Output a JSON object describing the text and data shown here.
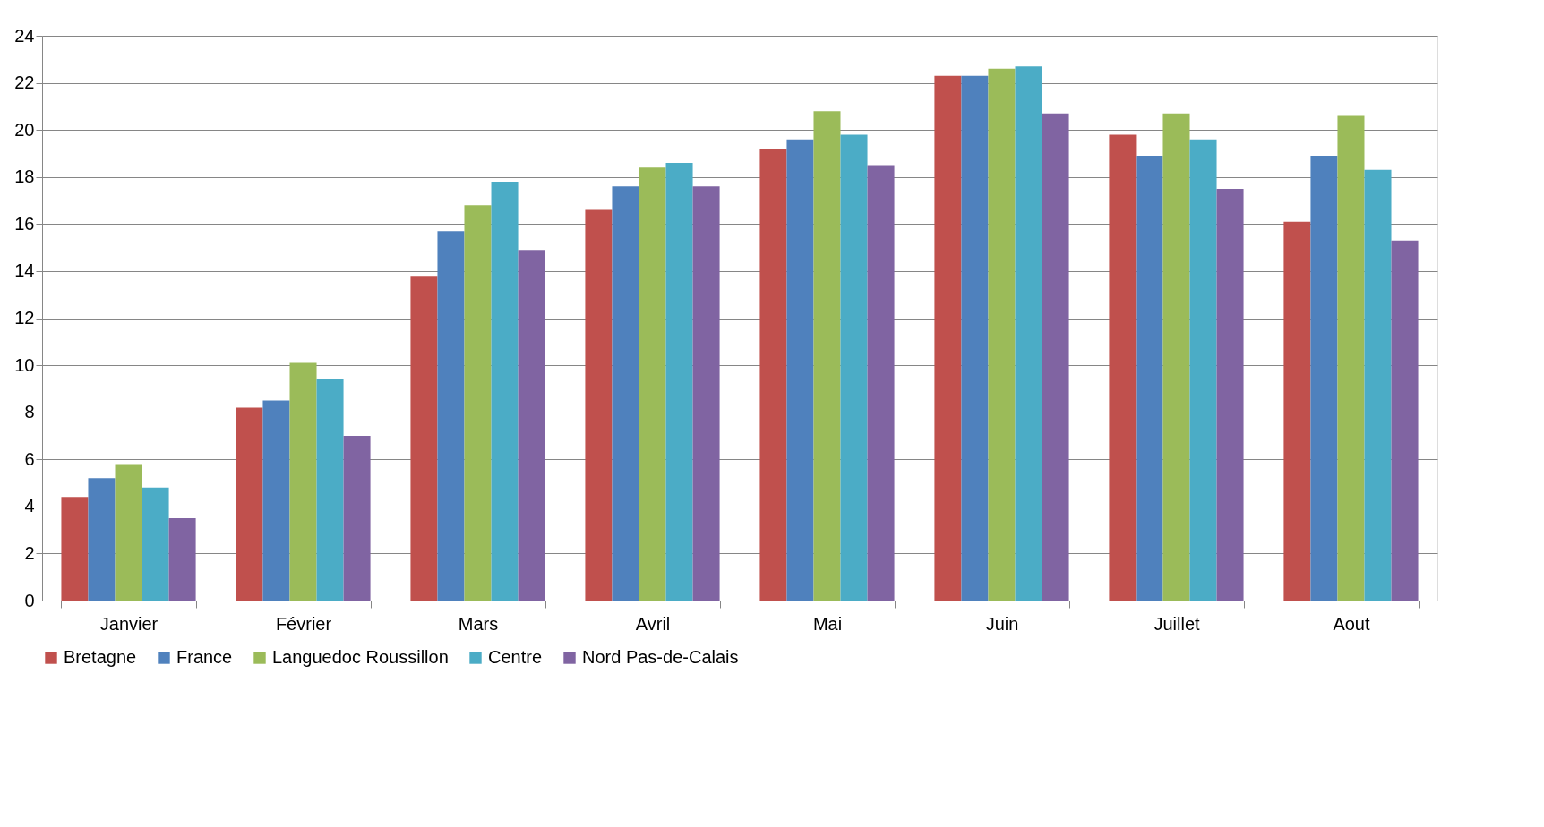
{
  "chart_data": {
    "type": "bar",
    "categories": [
      "Janvier",
      "Février",
      "Mars",
      "Avril",
      "Mai",
      "Juin",
      "Juillet",
      "Aout"
    ],
    "series": [
      {
        "name": "Bretagne",
        "color": "#c0504d",
        "values": [
          4.4,
          8.2,
          13.8,
          16.6,
          19.2,
          22.3,
          19.8,
          16.1
        ]
      },
      {
        "name": "France",
        "color": "#4f81bd",
        "values": [
          5.2,
          8.5,
          15.7,
          17.6,
          19.6,
          22.3,
          18.9,
          18.9
        ]
      },
      {
        "name": "Languedoc Roussillon",
        "color": "#9bbb59",
        "values": [
          5.8,
          10.1,
          16.8,
          18.4,
          20.8,
          22.6,
          20.7,
          20.6
        ]
      },
      {
        "name": "Centre",
        "color": "#4bacc6",
        "values": [
          4.8,
          9.4,
          17.8,
          18.6,
          19.8,
          22.7,
          19.6,
          18.3
        ]
      },
      {
        "name": "Nord Pas-de-Calais",
        "color": "#8064a2",
        "values": [
          3.5,
          7.0,
          14.9,
          17.6,
          18.5,
          20.7,
          17.5,
          15.3
        ]
      }
    ],
    "ylim": [
      0,
      24
    ],
    "yticks": [
      0,
      2,
      4,
      6,
      8,
      10,
      12,
      14,
      16,
      18,
      20,
      22,
      24
    ],
    "grid": "y",
    "legend": "bottom"
  }
}
